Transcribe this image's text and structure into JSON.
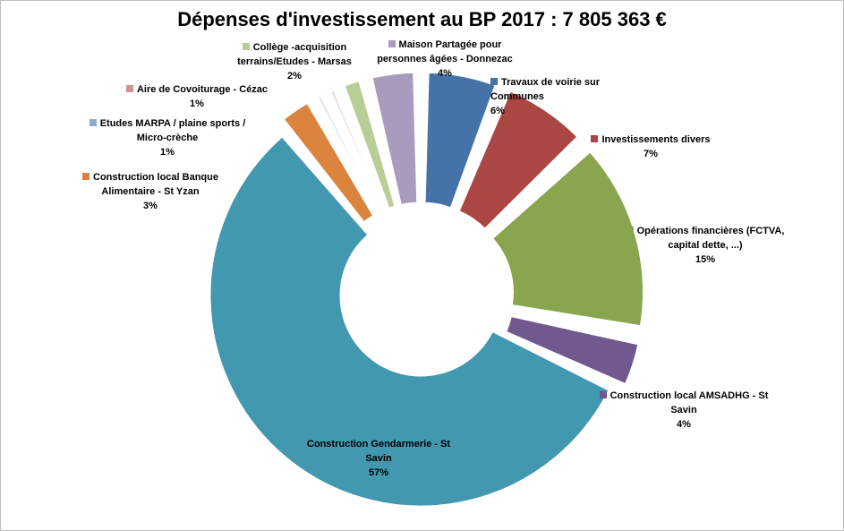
{
  "chart_data": {
    "type": "pie",
    "variant": "doughnut-exploded",
    "title": "Dépenses d'investissement au BP 2017 : 7 805 363 €",
    "categories": [
      "Travaux de voirie sur Communes",
      "Investissements divers",
      "Opérations financières (FCTVA, capital dette, ...)",
      "Construction local AMSADHG - St Savin",
      "Construction Gendarmerie - St Savin",
      "Construction local Banque Alimentaire - St Yzan",
      "Etudes MARPA / plaine sports / Micro-crèche",
      "Aire de Covoiturage - Cézac",
      "Collège -acquisition terrains/Etudes - Marsas",
      "Maison Partagée pour personnes âgées - Donnezac"
    ],
    "values": [
      6,
      7,
      15,
      4,
      57,
      3,
      1,
      1,
      2,
      4
    ],
    "percent_labels": [
      "6%",
      "7%",
      "15%",
      "4%",
      "57%",
      "3%",
      "1%",
      "1%",
      "2%",
      "4%"
    ],
    "colors": [
      "#4572a7",
      "#aa4643",
      "#89a54e",
      "#71588f",
      "#4198af",
      "#db843d",
      "#93a9cf",
      "#d19392",
      "#b9cd96",
      "#a99bbd"
    ],
    "legend": "none"
  }
}
